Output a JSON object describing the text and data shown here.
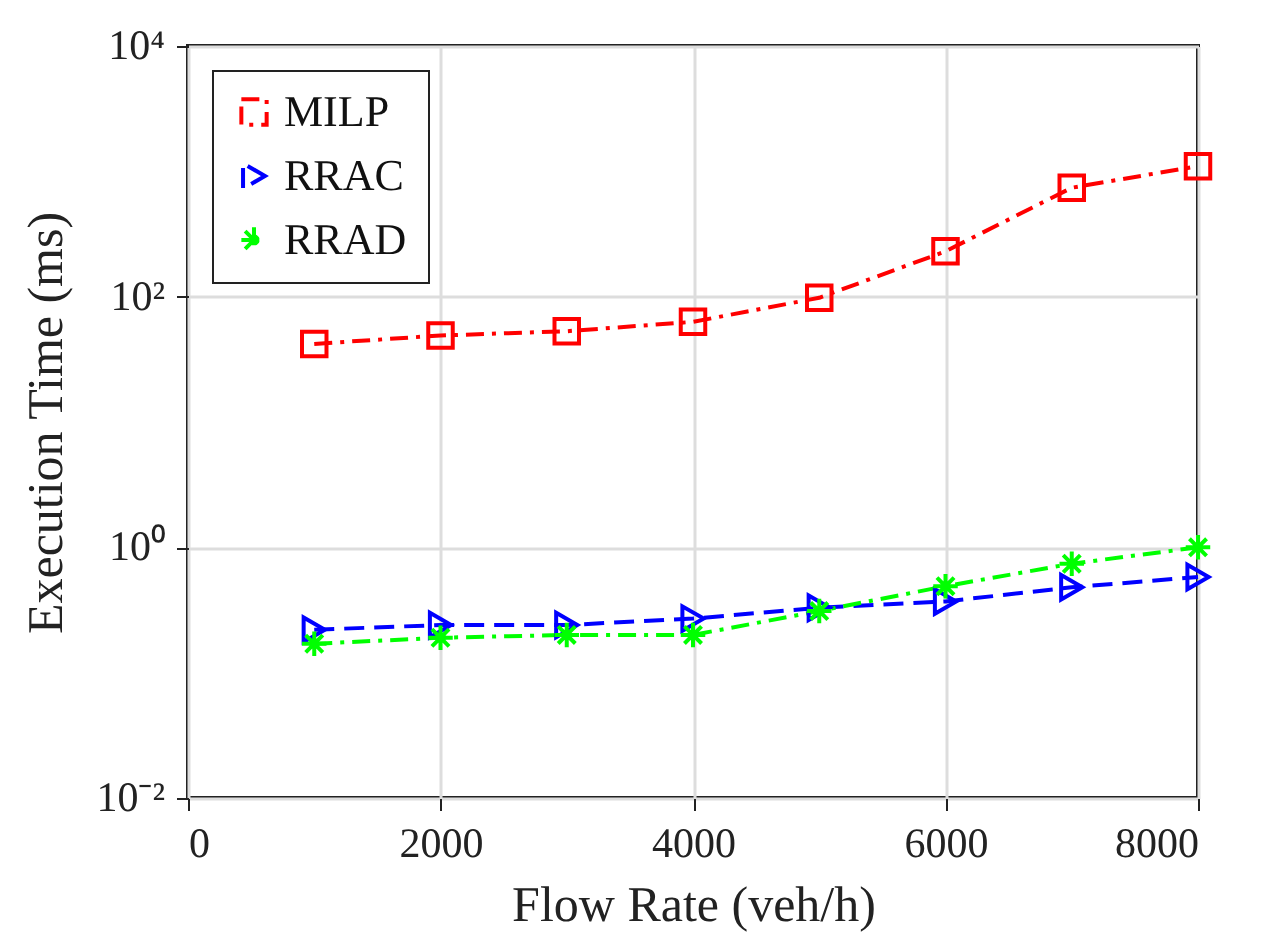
{
  "chart_data": {
    "type": "line",
    "xlabel": "Flow Rate (veh/h)",
    "ylabel": "Execution Time (ms)",
    "x": [
      1000,
      2000,
      3000,
      4000,
      5000,
      6000,
      7000,
      8000
    ],
    "series": [
      {
        "name": "MILP",
        "color": "#ff0000",
        "marker": "square",
        "line_style": "dashdot",
        "values": [
          42,
          49,
          53,
          63,
          98,
          230,
          740,
          1100
        ]
      },
      {
        "name": "RRAC",
        "color": "#0000ff",
        "marker": "triangle",
        "line_style": "dashed",
        "values": [
          0.22,
          0.24,
          0.24,
          0.27,
          0.33,
          0.37,
          0.48,
          0.58
        ]
      },
      {
        "name": "RRAD",
        "color": "#00ff00",
        "marker": "cross",
        "line_style": "dashdot",
        "values": [
          0.17,
          0.19,
          0.2,
          0.2,
          0.31,
          0.49,
          0.74,
          1.0
        ]
      }
    ],
    "log": "y",
    "xlim": [
      0,
      8000
    ],
    "xticks": [
      0,
      2000,
      4000,
      6000,
      8000
    ],
    "ylim": [
      0.01,
      10000
    ],
    "yticks": [
      {
        "value": 0.01,
        "label": "10⁻²"
      },
      {
        "value": 1,
        "label": "10⁰"
      },
      {
        "value": 100,
        "label": "10²"
      },
      {
        "value": 10000,
        "label": "10⁴"
      }
    ],
    "grid": true,
    "legend": "top left"
  }
}
